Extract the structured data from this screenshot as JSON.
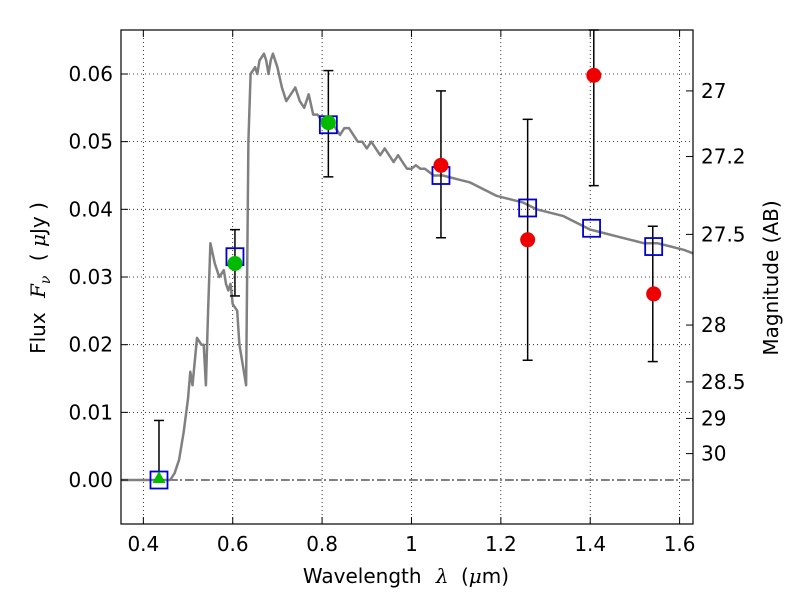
{
  "chart_data": {
    "type": "scatter",
    "xlabel_text": "Wavelength",
    "xlabel_symbol": "λ",
    "xlabel_unit_open": "(",
    "xlabel_unit_mu": "μ",
    "xlabel_unit_rest": "m)",
    "ylabel_text": "Flux",
    "ylabel_symbol": "F",
    "ylabel_subscript": "ν",
    "ylabel_unit_open": "( ",
    "ylabel_unit_mu": "μ",
    "ylabel_unit_rest": "Jy )",
    "y2label": "Magnitude (AB)",
    "xlim": [
      0.35,
      1.63
    ],
    "ylim": [
      -0.0065,
      0.0665
    ],
    "grid": true,
    "x_ticks": [
      0.4,
      0.6,
      0.8,
      1.0,
      1.2,
      1.4,
      1.6
    ],
    "x_tick_labels": [
      "0.4",
      "0.6",
      "0.8",
      "1",
      "1.2",
      "1.4",
      "1.6"
    ],
    "y_ticks": [
      0.0,
      0.01,
      0.02,
      0.03,
      0.04,
      0.05,
      0.06
    ],
    "y_tick_labels": [
      "0.00",
      "0.01",
      "0.02",
      "0.03",
      "0.04",
      "0.05",
      "0.06"
    ],
    "y2_ticks": [
      {
        "label": "27",
        "flux": 0.0575
      },
      {
        "label": "27.2",
        "flux": 0.0478
      },
      {
        "label": "27.5",
        "flux": 0.0363
      },
      {
        "label": "28",
        "flux": 0.0229
      },
      {
        "label": "28.5",
        "flux": 0.0145
      },
      {
        "label": "29",
        "flux": 0.0091
      },
      {
        "label": "30",
        "flux": 0.0039
      }
    ],
    "series": [
      {
        "kind": "line",
        "color": "#808080",
        "points": [
          [
            0.35,
            0.0
          ],
          [
            0.46,
            0.0
          ],
          [
            0.47,
            0.001
          ],
          [
            0.48,
            0.003
          ],
          [
            0.49,
            0.007
          ],
          [
            0.5,
            0.012
          ],
          [
            0.505,
            0.016
          ],
          [
            0.51,
            0.014
          ],
          [
            0.52,
            0.021
          ],
          [
            0.53,
            0.02
          ],
          [
            0.535,
            0.02
          ],
          [
            0.54,
            0.014
          ],
          [
            0.545,
            0.025
          ],
          [
            0.55,
            0.035
          ],
          [
            0.56,
            0.032
          ],
          [
            0.57,
            0.03
          ],
          [
            0.58,
            0.031
          ],
          [
            0.585,
            0.029
          ],
          [
            0.59,
            0.028
          ],
          [
            0.595,
            0.029
          ],
          [
            0.6,
            0.026
          ],
          [
            0.61,
            0.025
          ],
          [
            0.615,
            0.02
          ],
          [
            0.625,
            0.016
          ],
          [
            0.63,
            0.014
          ],
          [
            0.635,
            0.05
          ],
          [
            0.64,
            0.06
          ],
          [
            0.65,
            0.061
          ],
          [
            0.655,
            0.06
          ],
          [
            0.66,
            0.062
          ],
          [
            0.67,
            0.063
          ],
          [
            0.675,
            0.062
          ],
          [
            0.68,
            0.06
          ],
          [
            0.685,
            0.062
          ],
          [
            0.69,
            0.063
          ],
          [
            0.7,
            0.061
          ],
          [
            0.71,
            0.058
          ],
          [
            0.72,
            0.056
          ],
          [
            0.73,
            0.057
          ],
          [
            0.74,
            0.058
          ],
          [
            0.75,
            0.056
          ],
          [
            0.76,
            0.055
          ],
          [
            0.77,
            0.057
          ],
          [
            0.78,
            0.054
          ],
          [
            0.79,
            0.054
          ],
          [
            0.8,
            0.053
          ],
          [
            0.81,
            0.052
          ],
          [
            0.82,
            0.053
          ],
          [
            0.83,
            0.052
          ],
          [
            0.84,
            0.051
          ],
          [
            0.85,
            0.052
          ],
          [
            0.86,
            0.052
          ],
          [
            0.87,
            0.051
          ],
          [
            0.88,
            0.05
          ],
          [
            0.89,
            0.05
          ],
          [
            0.9,
            0.049
          ],
          [
            0.91,
            0.05
          ],
          [
            0.92,
            0.049
          ],
          [
            0.93,
            0.048
          ],
          [
            0.94,
            0.049
          ],
          [
            0.95,
            0.048
          ],
          [
            0.96,
            0.047
          ],
          [
            0.97,
            0.048
          ],
          [
            0.98,
            0.047
          ],
          [
            0.99,
            0.046
          ],
          [
            1.0,
            0.046
          ],
          [
            1.01,
            0.0465
          ],
          [
            1.02,
            0.046
          ],
          [
            1.03,
            0.046
          ],
          [
            1.04,
            0.0455
          ],
          [
            1.05,
            0.045
          ],
          [
            1.07,
            0.045
          ],
          [
            1.1,
            0.0445
          ],
          [
            1.13,
            0.044
          ],
          [
            1.16,
            0.043
          ],
          [
            1.19,
            0.042
          ],
          [
            1.22,
            0.0415
          ],
          [
            1.25,
            0.041
          ],
          [
            1.28,
            0.04
          ],
          [
            1.31,
            0.0395
          ],
          [
            1.34,
            0.039
          ],
          [
            1.37,
            0.038
          ],
          [
            1.4,
            0.037
          ],
          [
            1.43,
            0.0365
          ],
          [
            1.46,
            0.036
          ],
          [
            1.49,
            0.0355
          ],
          [
            1.52,
            0.035
          ],
          [
            1.55,
            0.035
          ],
          [
            1.58,
            0.0345
          ],
          [
            1.61,
            0.034
          ],
          [
            1.63,
            0.0335
          ]
        ]
      },
      {
        "kind": "errorbar",
        "color": "#000000",
        "points": [
          {
            "x": 0.435,
            "lo": 0.0,
            "hi": 0.0088
          },
          {
            "x": 0.605,
            "lo": 0.0272,
            "hi": 0.037
          },
          {
            "x": 0.814,
            "lo": 0.0448,
            "hi": 0.0605
          },
          {
            "x": 1.066,
            "lo": 0.0358,
            "hi": 0.0575
          },
          {
            "x": 1.26,
            "lo": 0.0177,
            "hi": 0.0533
          },
          {
            "x": 1.408,
            "lo": 0.0435,
            "hi": 0.0665
          },
          {
            "x": 1.54,
            "lo": 0.0175,
            "hi": 0.0375
          }
        ]
      },
      {
        "kind": "square",
        "color": "#0000cc",
        "points": [
          [
            0.435,
            0.0
          ],
          [
            0.605,
            0.033
          ],
          [
            0.814,
            0.0525
          ],
          [
            1.066,
            0.045
          ],
          [
            1.26,
            0.0402
          ],
          [
            1.403,
            0.0372
          ],
          [
            1.542,
            0.0345
          ]
        ]
      },
      {
        "kind": "circle",
        "color": "#00bb00",
        "points": [
          [
            0.605,
            0.032
          ],
          [
            0.814,
            0.0528
          ]
        ]
      },
      {
        "kind": "triangle",
        "color": "#00bb00",
        "points": [
          [
            0.435,
            0.0003
          ]
        ]
      },
      {
        "kind": "circle",
        "color": "#ee0000",
        "points": [
          [
            1.066,
            0.0465
          ],
          [
            1.26,
            0.0355
          ],
          [
            1.408,
            0.0598
          ],
          [
            1.542,
            0.0275
          ]
        ]
      }
    ]
  }
}
